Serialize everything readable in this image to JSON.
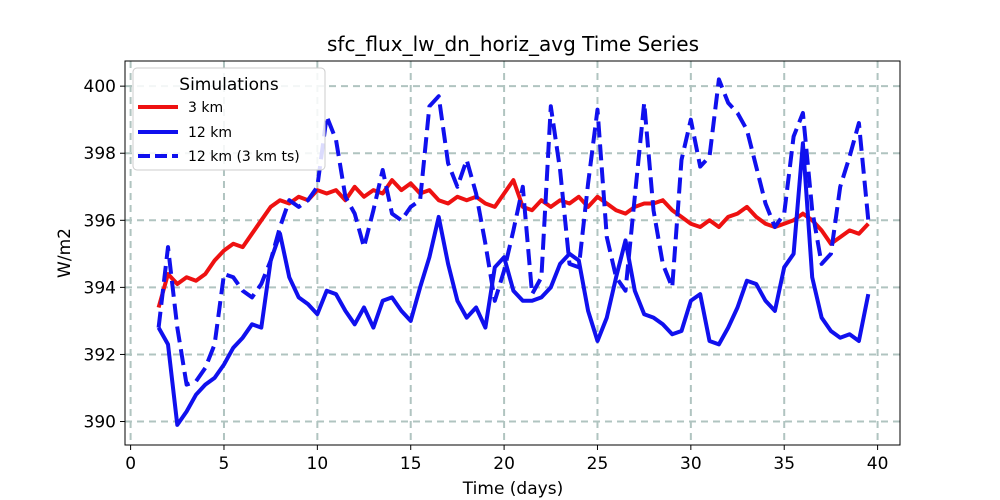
{
  "chart_data": {
    "type": "line",
    "title": "sfc_flux_lw_dn_horiz_avg Time Series",
    "xlabel": "Time (days)",
    "ylabel": "W/m2",
    "xlim": [
      -0.3,
      41.2
    ],
    "ylim": [
      389.3,
      400.75
    ],
    "xticks": [
      0,
      5,
      10,
      15,
      20,
      25,
      30,
      35,
      40
    ],
    "yticks": [
      390,
      392,
      394,
      396,
      398,
      400
    ],
    "grid": true,
    "legend": {
      "title": "Simulations",
      "placement": "top-left"
    },
    "series": [
      {
        "name": "3 km",
        "color": "#ee1111",
        "style": "solid",
        "x": [
          1.5,
          2.0,
          2.5,
          3.0,
          3.5,
          4.0,
          4.5,
          5.0,
          5.5,
          6.0,
          6.5,
          7.0,
          7.5,
          8.0,
          8.5,
          9.0,
          9.5,
          10.0,
          10.5,
          11.0,
          11.5,
          12.0,
          12.5,
          13.0,
          13.5,
          14.0,
          14.5,
          15.0,
          15.5,
          16.0,
          16.5,
          17.0,
          17.5,
          18.0,
          18.5,
          19.0,
          19.5,
          20.0,
          20.5,
          21.0,
          21.5,
          22.0,
          22.5,
          23.0,
          23.5,
          24.0,
          24.5,
          25.0,
          25.5,
          26.0,
          26.5,
          27.0,
          27.5,
          28.0,
          28.5,
          29.0,
          29.5,
          30.0,
          30.5,
          31.0,
          31.5,
          32.0,
          32.5,
          33.0,
          33.5,
          34.0,
          34.5,
          35.0,
          35.5,
          36.0,
          36.5,
          37.0,
          37.5,
          38.0,
          38.5,
          39.0,
          39.5
        ],
        "y": [
          393.4,
          394.4,
          394.1,
          394.3,
          394.2,
          394.4,
          394.8,
          395.1,
          395.3,
          395.2,
          395.6,
          396.0,
          396.4,
          396.6,
          396.5,
          396.7,
          396.6,
          396.9,
          396.8,
          396.9,
          396.6,
          397.0,
          396.7,
          396.9,
          396.8,
          397.2,
          396.9,
          397.1,
          396.8,
          396.9,
          396.6,
          396.5,
          396.7,
          396.6,
          396.7,
          396.5,
          396.4,
          396.8,
          397.2,
          396.4,
          396.3,
          396.6,
          396.4,
          396.6,
          396.5,
          396.7,
          396.4,
          396.7,
          396.5,
          396.3,
          396.2,
          396.4,
          396.5,
          396.5,
          396.6,
          396.3,
          396.1,
          395.9,
          395.8,
          396.0,
          395.8,
          396.1,
          396.2,
          396.4,
          396.1,
          395.9,
          395.8,
          395.9,
          396.0,
          396.2,
          396.0,
          395.7,
          395.3,
          395.5,
          395.7,
          395.6,
          395.9
        ]
      },
      {
        "name": "12 km",
        "color": "#1010ee",
        "style": "solid",
        "x": [
          1.5,
          2.0,
          2.5,
          3.0,
          3.5,
          4.0,
          4.5,
          5.0,
          5.5,
          6.0,
          6.5,
          7.0,
          7.5,
          8.0,
          8.5,
          9.0,
          9.5,
          10.0,
          10.5,
          11.0,
          11.5,
          12.0,
          12.5,
          13.0,
          13.5,
          14.0,
          14.5,
          15.0,
          15.5,
          16.0,
          16.5,
          17.0,
          17.5,
          18.0,
          18.5,
          19.0,
          19.5,
          20.0,
          20.5,
          21.0,
          21.5,
          22.0,
          22.5,
          23.0,
          23.5,
          24.0,
          24.5,
          25.0,
          25.5,
          26.0,
          26.5,
          27.0,
          27.5,
          28.0,
          28.5,
          29.0,
          29.5,
          30.0,
          30.5,
          31.0,
          31.5,
          32.0,
          32.5,
          33.0,
          33.5,
          34.0,
          34.5,
          35.0,
          35.5,
          36.0,
          36.5,
          37.0,
          37.5,
          38.0,
          38.5,
          39.0,
          39.5
        ],
        "y": [
          392.8,
          392.3,
          389.9,
          390.3,
          390.8,
          391.1,
          391.3,
          391.7,
          392.2,
          392.5,
          392.9,
          392.8,
          394.8,
          395.6,
          394.3,
          393.7,
          393.5,
          393.2,
          393.9,
          393.8,
          393.3,
          392.9,
          393.4,
          392.8,
          393.6,
          393.7,
          393.3,
          393.0,
          394.0,
          394.9,
          396.1,
          394.7,
          393.6,
          393.1,
          393.4,
          392.8,
          394.6,
          394.9,
          393.9,
          393.6,
          393.6,
          393.7,
          394.0,
          394.7,
          395.0,
          394.8,
          393.3,
          392.4,
          393.1,
          394.3,
          395.4,
          393.9,
          393.2,
          393.1,
          392.9,
          392.6,
          392.7,
          393.6,
          393.8,
          392.4,
          392.3,
          392.8,
          393.4,
          394.2,
          394.1,
          393.6,
          393.3,
          394.6,
          395.0,
          398.3,
          394.3,
          393.1,
          392.7,
          392.5,
          392.6,
          392.4,
          393.8
        ]
      },
      {
        "name": "12 km (3 km ts)",
        "color": "#1010ee",
        "style": "dashed",
        "x": [
          1.5,
          2.0,
          2.5,
          3.0,
          3.5,
          4.0,
          4.5,
          5.0,
          5.5,
          6.0,
          6.5,
          7.0,
          7.5,
          8.0,
          8.5,
          9.0,
          9.5,
          10.0,
          10.5,
          11.0,
          11.5,
          12.0,
          12.5,
          13.0,
          13.5,
          14.0,
          14.5,
          15.0,
          15.5,
          16.0,
          16.5,
          17.0,
          17.5,
          18.0,
          18.5,
          19.0,
          19.5,
          20.0,
          20.5,
          21.0,
          21.5,
          22.0,
          22.5,
          23.0,
          23.5,
          24.0,
          24.5,
          25.0,
          25.5,
          26.0,
          26.5,
          27.0,
          27.5,
          28.0,
          28.5,
          29.0,
          29.5,
          30.0,
          30.5,
          31.0,
          31.5,
          32.0,
          32.5,
          33.0,
          33.5,
          34.0,
          34.5,
          35.0,
          35.5,
          36.0,
          36.5,
          37.0,
          37.5,
          38.0,
          38.5,
          39.0,
          39.5
        ],
        "y": [
          392.8,
          395.2,
          392.8,
          391.1,
          391.2,
          391.6,
          392.3,
          394.4,
          394.3,
          393.9,
          393.7,
          394.1,
          394.8,
          395.8,
          396.6,
          396.4,
          396.6,
          397.0,
          399.1,
          398.4,
          396.7,
          396.2,
          395.2,
          396.3,
          397.5,
          396.2,
          396.0,
          396.4,
          396.6,
          399.4,
          399.7,
          397.7,
          397.0,
          397.8,
          396.8,
          395.3,
          393.6,
          394.5,
          395.7,
          397.0,
          393.8,
          394.3,
          399.4,
          397.5,
          394.7,
          394.6,
          397.1,
          399.3,
          395.5,
          394.3,
          393.9,
          396.7,
          399.5,
          396.3,
          394.7,
          394.0,
          397.8,
          399.0,
          397.6,
          397.9,
          400.2,
          399.5,
          399.2,
          398.7,
          397.6,
          396.5,
          395.8,
          396.2,
          398.5,
          399.2,
          396.3,
          394.7,
          395.0,
          397.0,
          397.9,
          398.9,
          396.0
        ]
      }
    ]
  }
}
